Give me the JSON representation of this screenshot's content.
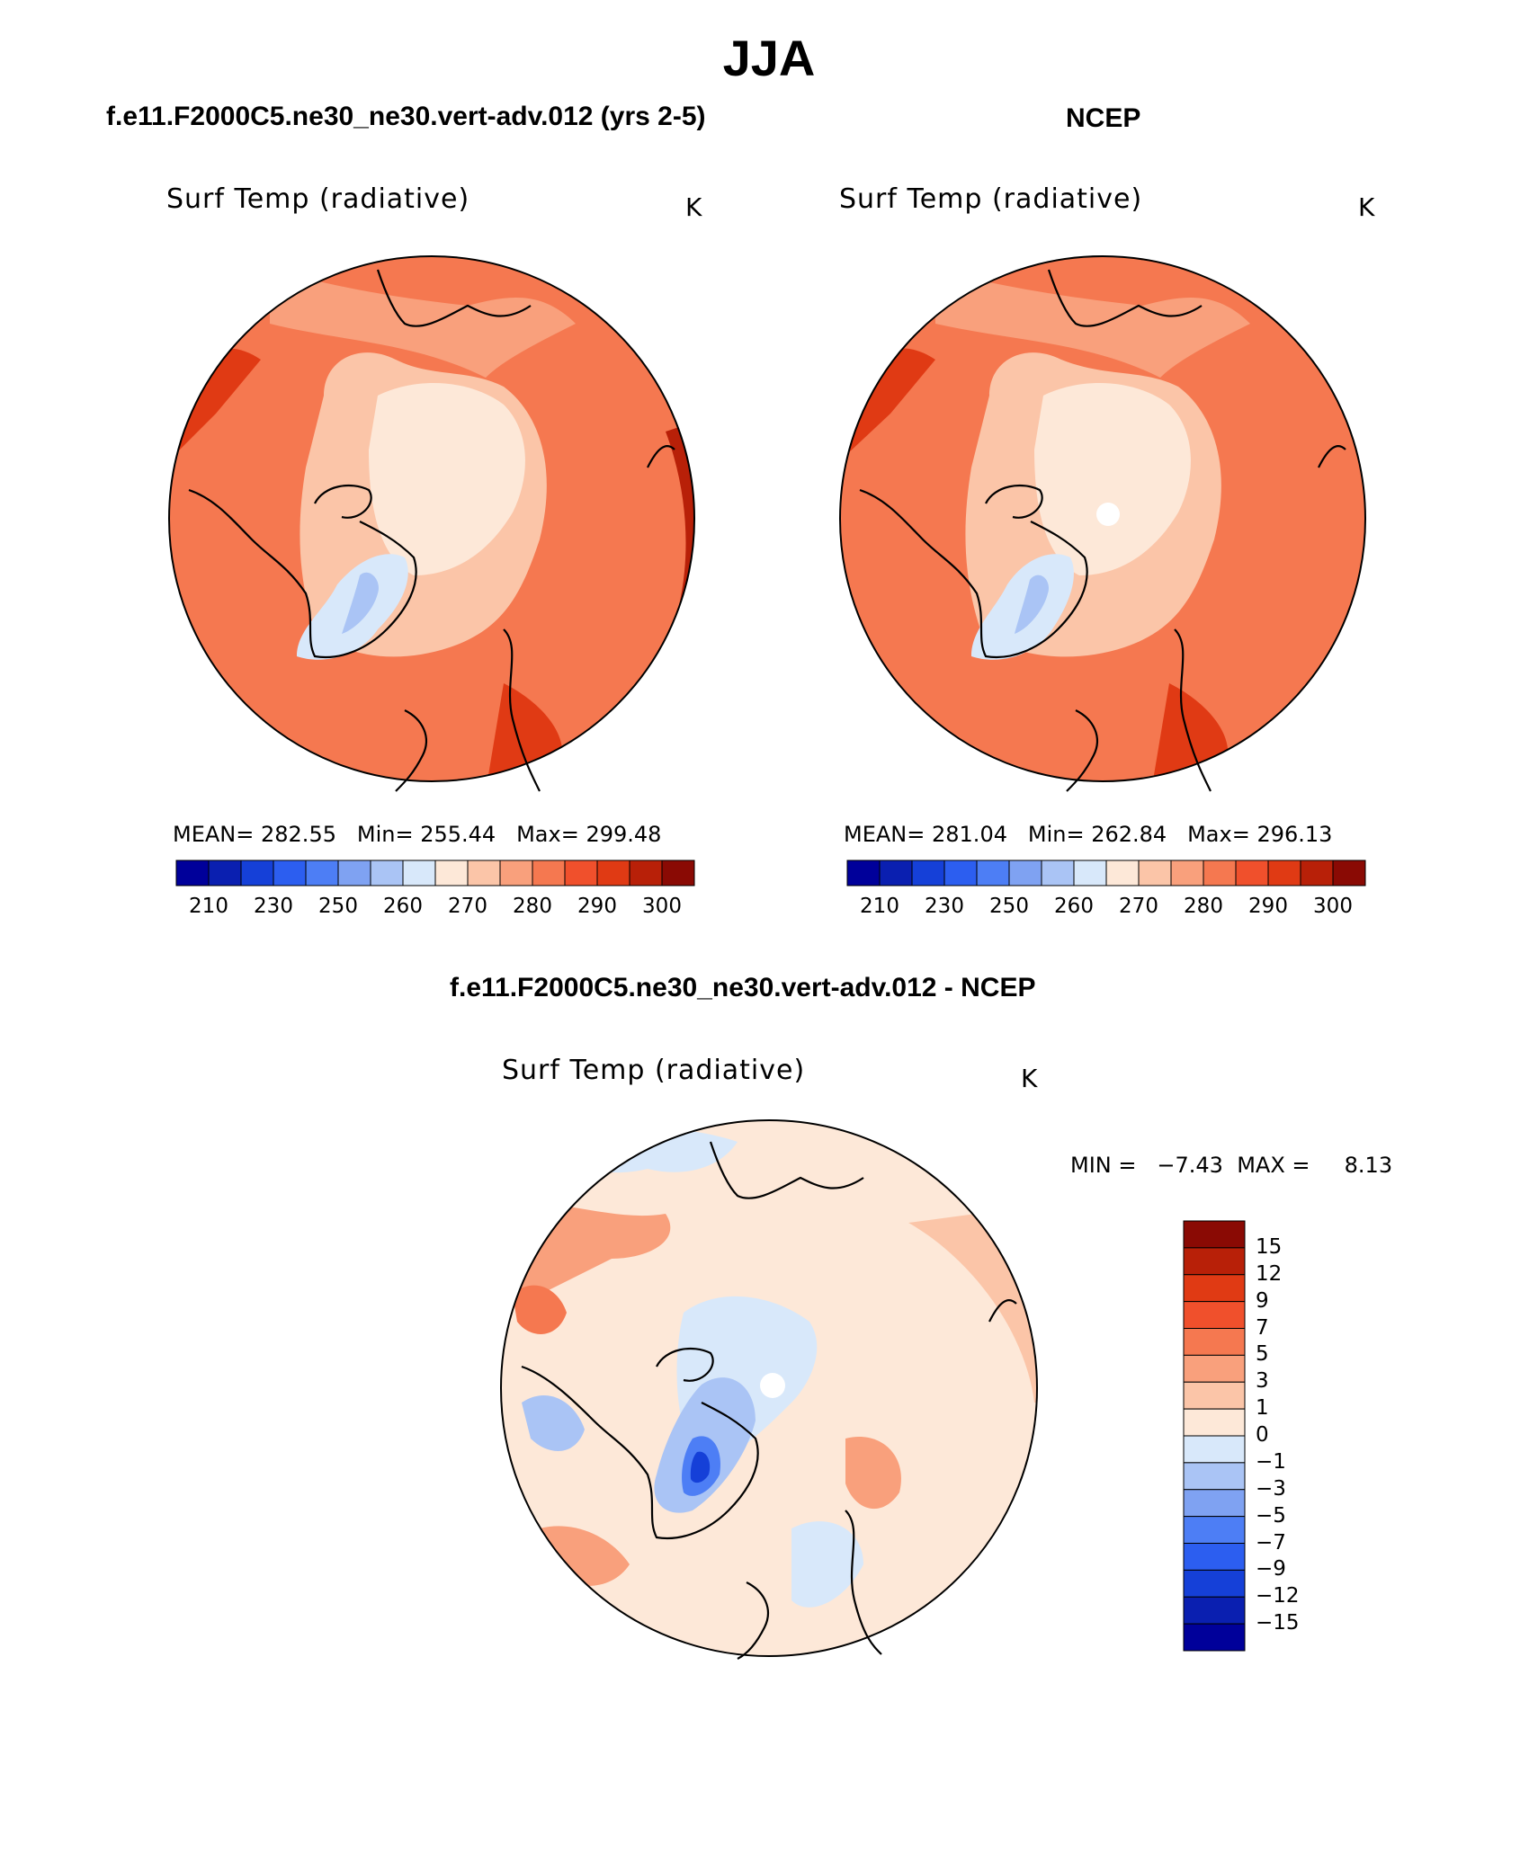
{
  "title": "JJA",
  "panels": {
    "model": {
      "header": "f.e11.F2000C5.ne30_ne30.vert-adv.012 (yrs 2-5)",
      "variable": "Surf Temp (radiative)",
      "units": "K",
      "stats": {
        "mean_label": "MEAN=",
        "mean": "282.55",
        "min_label": "Min=",
        "min": "255.44",
        "max_label": "Max=",
        "max": "299.48"
      }
    },
    "obs": {
      "header": "NCEP",
      "variable": "Surf Temp (radiative)",
      "units": "K",
      "stats": {
        "mean_label": "MEAN=",
        "mean": "281.04",
        "min_label": "Min=",
        "min": "262.84",
        "max_label": "Max=",
        "max": "296.13"
      }
    },
    "diff": {
      "header": "f.e11.F2000C5.ne30_ne30.vert-adv.012 - NCEP",
      "variable": "Surf Temp (radiative)",
      "units": "K",
      "stats": {
        "min_label": "MIN =",
        "min": "−7.43",
        "max_label": "MAX =",
        "max": "8.13"
      }
    }
  },
  "colorbar_abs": {
    "colors": [
      "#00009a",
      "#0a1fb0",
      "#1540d8",
      "#2c5ef0",
      "#4d7ef5",
      "#7fa2f2",
      "#aac4f5",
      "#d8e8fa",
      "#fde8d8",
      "#fbc5a8",
      "#f9a07c",
      "#f57850",
      "#f0502c",
      "#e03a14",
      "#b82008",
      "#8a0a04"
    ],
    "labels": [
      "210",
      "230",
      "250",
      "260",
      "270",
      "280",
      "290",
      "300"
    ]
  },
  "colorbar_diff": {
    "colors": [
      "#8a0a04",
      "#b82008",
      "#e03a14",
      "#f0502c",
      "#f57850",
      "#f9a07c",
      "#fbc5a8",
      "#fde8d8",
      "#d8e8fa",
      "#aac4f5",
      "#7fa2f2",
      "#4d7ef5",
      "#2c5ef0",
      "#1540d8",
      "#0a1fb0",
      "#00009a"
    ],
    "labels": [
      "15",
      "12",
      "9",
      "7",
      "5",
      "3",
      "1",
      "0",
      "−1",
      "−3",
      "−5",
      "−7",
      "−9",
      "−12",
      "−15"
    ]
  }
}
